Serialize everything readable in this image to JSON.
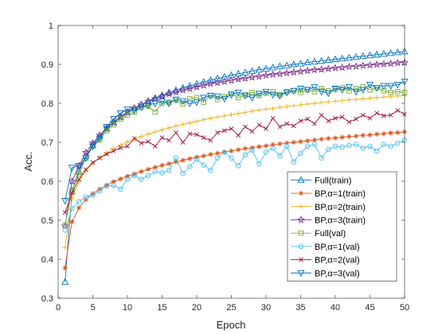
{
  "chart_data": {
    "type": "line",
    "title": "",
    "xlabel": "Epoch",
    "ylabel": "Acc.",
    "xlim": [
      0,
      50
    ],
    "ylim": [
      0.3,
      1
    ],
    "xticks": [
      0,
      5,
      10,
      15,
      20,
      25,
      30,
      35,
      40,
      45,
      50
    ],
    "yticks": [
      0.3,
      0.4,
      0.5,
      0.6,
      0.7,
      0.8,
      0.9,
      1
    ],
    "xtick_labels": [
      "0",
      "5",
      "10",
      "15",
      "20",
      "25",
      "30",
      "35",
      "40",
      "45",
      "50"
    ],
    "ytick_labels": [
      "0.3",
      "0.4",
      "0.5",
      "0.6",
      "0.7",
      "0.8",
      "0.9",
      "1"
    ],
    "grid": false,
    "legend_position": "bottom-right",
    "x": [
      1,
      2,
      3,
      4,
      5,
      6,
      7,
      8,
      9,
      10,
      11,
      12,
      13,
      14,
      15,
      16,
      17,
      18,
      19,
      20,
      21,
      22,
      23,
      24,
      25,
      26,
      27,
      28,
      29,
      30,
      31,
      32,
      33,
      34,
      35,
      36,
      37,
      38,
      39,
      40,
      41,
      42,
      43,
      44,
      45,
      46,
      47,
      48,
      49,
      50
    ],
    "series": [
      {
        "name": "Full(train)",
        "color": "#0072BD",
        "marker": "triangle-up",
        "values": [
          0.342,
          0.575,
          0.625,
          0.665,
          0.693,
          0.716,
          0.735,
          0.751,
          0.765,
          0.777,
          0.788,
          0.797,
          0.806,
          0.814,
          0.821,
          0.828,
          0.834,
          0.84,
          0.845,
          0.85,
          0.855,
          0.86,
          0.864,
          0.868,
          0.872,
          0.876,
          0.879,
          0.883,
          0.886,
          0.889,
          0.892,
          0.895,
          0.897,
          0.9,
          0.902,
          0.905,
          0.907,
          0.909,
          0.911,
          0.913,
          0.915,
          0.917,
          0.919,
          0.921,
          0.923,
          0.925,
          0.927,
          0.929,
          0.931,
          0.933
        ]
      },
      {
        "name": "BP,α=1(train)",
        "color": "#D95319",
        "marker": "asterisk",
        "values": [
          0.378,
          0.496,
          0.532,
          0.553,
          0.568,
          0.58,
          0.59,
          0.599,
          0.606,
          0.613,
          0.619,
          0.625,
          0.631,
          0.636,
          0.641,
          0.645,
          0.65,
          0.654,
          0.658,
          0.662,
          0.665,
          0.669,
          0.672,
          0.675,
          0.678,
          0.681,
          0.684,
          0.686,
          0.689,
          0.691,
          0.694,
          0.696,
          0.698,
          0.7,
          0.702,
          0.704,
          0.706,
          0.708,
          0.71,
          0.711,
          0.713,
          0.715,
          0.716,
          0.718,
          0.719,
          0.721,
          0.722,
          0.724,
          0.725,
          0.727
        ]
      },
      {
        "name": "BP,α=2(train)",
        "color": "#EDB120",
        "marker": "plus",
        "values": [
          0.43,
          0.556,
          0.6,
          0.627,
          0.646,
          0.661,
          0.673,
          0.684,
          0.693,
          0.701,
          0.708,
          0.715,
          0.721,
          0.727,
          0.732,
          0.737,
          0.742,
          0.746,
          0.75,
          0.754,
          0.758,
          0.762,
          0.765,
          0.768,
          0.771,
          0.774,
          0.777,
          0.78,
          0.783,
          0.785,
          0.787,
          0.79,
          0.792,
          0.794,
          0.796,
          0.798,
          0.8,
          0.802,
          0.804,
          0.805,
          0.807,
          0.809,
          0.81,
          0.812,
          0.813,
          0.815,
          0.816,
          0.818,
          0.819,
          0.82
        ]
      },
      {
        "name": "BP,α=3(train)",
        "color": "#7E2F8E",
        "marker": "star",
        "values": [
          0.485,
          0.6,
          0.64,
          0.674,
          0.698,
          0.718,
          0.737,
          0.752,
          0.766,
          0.778,
          0.788,
          0.797,
          0.805,
          0.812,
          0.818,
          0.824,
          0.829,
          0.834,
          0.838,
          0.842,
          0.846,
          0.85,
          0.853,
          0.856,
          0.859,
          0.862,
          0.864,
          0.867,
          0.869,
          0.872,
          0.874,
          0.876,
          0.878,
          0.88,
          0.882,
          0.884,
          0.886,
          0.887,
          0.889,
          0.891,
          0.892,
          0.894,
          0.895,
          0.897,
          0.898,
          0.9,
          0.901,
          0.902,
          0.904,
          0.905
        ]
      },
      {
        "name": "Full(val)",
        "color": "#77AC30",
        "marker": "square",
        "values": [
          0.488,
          0.575,
          0.618,
          0.66,
          0.69,
          0.706,
          0.73,
          0.745,
          0.76,
          0.77,
          0.778,
          0.79,
          0.792,
          0.778,
          0.8,
          0.803,
          0.808,
          0.798,
          0.812,
          0.815,
          0.803,
          0.82,
          0.81,
          0.818,
          0.825,
          0.815,
          0.822,
          0.828,
          0.82,
          0.826,
          0.83,
          0.822,
          0.83,
          0.833,
          0.828,
          0.835,
          0.83,
          0.838,
          0.832,
          0.836,
          0.84,
          0.832,
          0.838,
          0.842,
          0.835,
          0.84,
          0.832,
          0.828,
          0.83,
          0.828
        ]
      },
      {
        "name": "BP,α=1(val)",
        "color": "#4DBEEE",
        "marker": "circle",
        "values": [
          0.475,
          0.53,
          0.548,
          0.56,
          0.565,
          0.575,
          0.588,
          0.59,
          0.58,
          0.605,
          0.615,
          0.605,
          0.615,
          0.625,
          0.622,
          0.628,
          0.66,
          0.62,
          0.638,
          0.656,
          0.642,
          0.628,
          0.66,
          0.675,
          0.66,
          0.64,
          0.668,
          0.68,
          0.645,
          0.675,
          0.685,
          0.665,
          0.69,
          0.65,
          0.672,
          0.69,
          0.695,
          0.66,
          0.682,
          0.69,
          0.688,
          0.692,
          0.695,
          0.685,
          0.69,
          0.678,
          0.695,
          0.69,
          0.698,
          0.706
        ]
      },
      {
        "name": "BP,α=2(val)",
        "color": "#A2142F",
        "marker": "x",
        "values": [
          0.52,
          0.57,
          0.605,
          0.63,
          0.648,
          0.66,
          0.67,
          0.678,
          0.686,
          0.69,
          0.71,
          0.698,
          0.702,
          0.69,
          0.712,
          0.705,
          0.725,
          0.7,
          0.722,
          0.72,
          0.712,
          0.705,
          0.725,
          0.73,
          0.735,
          0.718,
          0.74,
          0.728,
          0.745,
          0.735,
          0.762,
          0.74,
          0.748,
          0.742,
          0.755,
          0.76,
          0.748,
          0.77,
          0.755,
          0.762,
          0.765,
          0.752,
          0.76,
          0.77,
          0.762,
          0.775,
          0.768,
          0.77,
          0.782,
          0.772
        ]
      },
      {
        "name": "BP,α=3(val)",
        "color": "#0072BD",
        "marker": "triangle-down",
        "values": [
          0.55,
          0.635,
          0.64,
          0.66,
          0.69,
          0.71,
          0.74,
          0.76,
          0.775,
          0.785,
          0.782,
          0.79,
          0.795,
          0.8,
          0.805,
          0.8,
          0.81,
          0.806,
          0.8,
          0.803,
          0.815,
          0.82,
          0.818,
          0.812,
          0.822,
          0.828,
          0.82,
          0.815,
          0.825,
          0.83,
          0.822,
          0.82,
          0.828,
          0.832,
          0.838,
          0.835,
          0.842,
          0.83,
          0.826,
          0.838,
          0.835,
          0.842,
          0.83,
          0.835,
          0.848,
          0.84,
          0.845,
          0.845,
          0.848,
          0.856
        ]
      }
    ]
  }
}
